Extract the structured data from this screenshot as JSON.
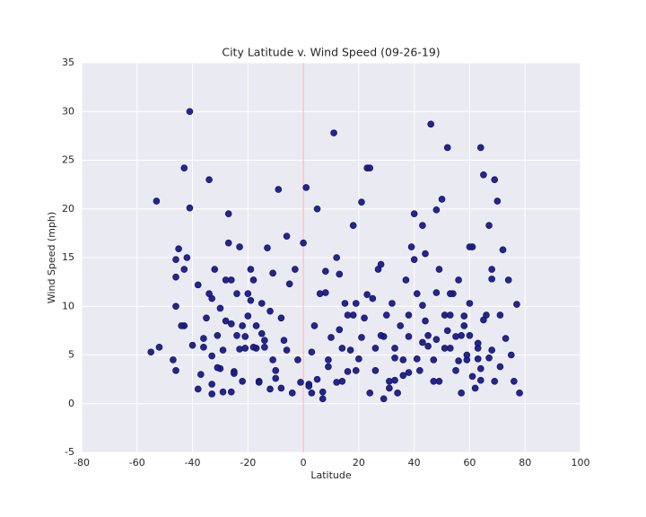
{
  "chart_data": {
    "type": "scatter",
    "title": "City Latitude v. Wind Speed (09-26-19)",
    "x_label": "Latitude",
    "y_label": "Wind Speed (mph)",
    "color": "#1a1a8a",
    "vline": 0,
    "vline_color": "#f4b4b4",
    "grid": true,
    "xlim": [
      -80,
      100
    ],
    "xticks": [
      -80,
      -60,
      -40,
      -20,
      0,
      20,
      40,
      60,
      80,
      100
    ],
    "ylim": [
      -5,
      35
    ],
    "yticks": [
      -5,
      0,
      5,
      10,
      15,
      20,
      25,
      30,
      35
    ],
    "x": [
      -55,
      -52,
      -47,
      -46,
      -46,
      -45,
      -46,
      -46,
      -43,
      -43,
      -42,
      -40,
      -38,
      -38,
      -37,
      -36,
      -33,
      -33,
      -41,
      -43,
      -34,
      -53,
      -41,
      -27,
      -35,
      -34,
      -33,
      -32,
      -31,
      -30,
      -29,
      -28,
      -27,
      -26,
      -25,
      -24,
      -23,
      -22,
      -21,
      -20,
      -19,
      -18,
      -17,
      -16,
      -15,
      -14,
      -13,
      -12,
      -11,
      -10,
      -9,
      -8,
      -7,
      -6,
      -5,
      -4,
      -3,
      -2,
      -1,
      0,
      -30,
      -29,
      -26,
      -24,
      -22,
      -20,
      -18,
      -16,
      -14,
      -12,
      -33,
      -31,
      -28,
      -25,
      -21,
      -17,
      -15,
      -11,
      -8,
      -6,
      1,
      2,
      3,
      4,
      5,
      6,
      7,
      8,
      9,
      10,
      11,
      12,
      13,
      14,
      15,
      16,
      17,
      18,
      19,
      20,
      21,
      22,
      23,
      24,
      25,
      26,
      27,
      28,
      29,
      30,
      31,
      32,
      33,
      34,
      35,
      36,
      37,
      38,
      39,
      40,
      41,
      42,
      43,
      44,
      45,
      46,
      47,
      48,
      49,
      50,
      51,
      52,
      53,
      54,
      55,
      56,
      57,
      58,
      59,
      60,
      61,
      62,
      63,
      64,
      65,
      66,
      67,
      68,
      69,
      70,
      71,
      72,
      73,
      74,
      75,
      76,
      77,
      78,
      64,
      60,
      2,
      5,
      7,
      9,
      12,
      14,
      16,
      19,
      21,
      24,
      26,
      29,
      31,
      33,
      36,
      38,
      41,
      43,
      45,
      47,
      49,
      51,
      53,
      55,
      57,
      59,
      61,
      63,
      65,
      67,
      69,
      71,
      40,
      44,
      48,
      52,
      56,
      60,
      64,
      68,
      3,
      8,
      13,
      18,
      23,
      28,
      33,
      38,
      43,
      48,
      53,
      58,
      63,
      68,
      -44,
      -36,
      -26,
      -23,
      -19,
      -10
    ],
    "values": [
      5.3,
      5.8,
      4.5,
      3.4,
      14.8,
      15.9,
      13,
      10,
      8,
      13.8,
      15,
      6,
      12.2,
      1.5,
      3,
      5.8,
      1,
      2,
      30,
      24.2,
      23,
      20.8,
      20.1,
      19.5,
      8.8,
      11.3,
      10.8,
      13.8,
      7,
      9.8,
      5.5,
      12.7,
      16.5,
      8.2,
      3.3,
      11.3,
      16.1,
      8,
      5.7,
      11.3,
      13.8,
      12.7,
      5.7,
      2.3,
      10.3,
      5.8,
      16,
      1.5,
      13.4,
      3.4,
      22,
      8.8,
      6.5,
      17.2,
      12.3,
      1.1,
      13.8,
      4.5,
      2.2,
      16.5,
      3.6,
      1.2,
      12.7,
      7,
      2.3,
      9,
      5.8,
      2.2,
      6.5,
      9.5,
      4.9,
      3.7,
      8.5,
      3.1,
      6.9,
      8,
      7.2,
      4.5,
      1.6,
      5.5,
      22.2,
      2,
      1.1,
      8,
      20,
      11.3,
      0.5,
      13.6,
      4.5,
      6.8,
      27.8,
      15,
      13.3,
      2.3,
      10.3,
      9.1,
      5.5,
      18.3,
      3.4,
      4.6,
      20.7,
      8.8,
      24.2,
      24.2,
      10.8,
      5.7,
      13.8,
      14.3,
      0.5,
      9.1,
      2.3,
      10.3,
      5.7,
      1.1,
      8,
      4.5,
      12.7,
      6.9,
      16.1,
      19.5,
      11.3,
      3.4,
      18.3,
      15.4,
      7,
      28.7,
      2.3,
      19.9,
      13.8,
      21,
      9.1,
      26.3,
      5.7,
      11.3,
      6.9,
      12.7,
      1.1,
      8,
      4.5,
      10.3,
      16.1,
      1.6,
      5.7,
      26.3,
      23.5,
      9.1,
      18.3,
      13.8,
      23,
      20.8,
      3.8,
      15.8,
      6.7,
      12.7,
      5,
      2.3,
      10.2,
      1.1,
      2.4,
      16.1,
      1.8,
      2.5,
      1.2,
      3.8,
      2.2,
      5.7,
      3.3,
      10.3,
      6.8,
      1.1,
      3.4,
      6.9,
      1.6,
      4.7,
      2.9,
      9.1,
      4.6,
      10.1,
      5.9,
      4.5,
      2.3,
      5.7,
      9.1,
      3.4,
      7,
      5,
      2.8,
      4.6,
      8.6,
      4.7,
      2.3,
      9.1,
      14.8,
      8.5,
      11.4,
      7.5,
      4.4,
      7,
      3.6,
      12.8,
      5.3,
      11.4,
      7.6,
      9.1,
      11.2,
      7,
      2.4,
      3.2,
      6.3,
      6.6,
      11.3,
      9,
      6.2,
      5.5,
      8,
      6.7,
      1.2,
      5.6,
      10.6,
      2.6
    ]
  }
}
